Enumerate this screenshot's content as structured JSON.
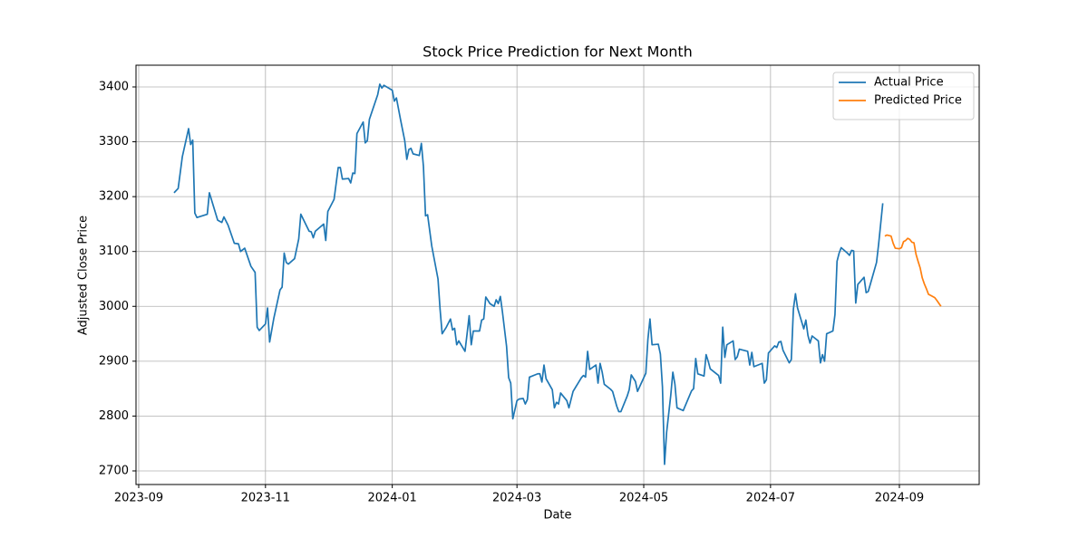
{
  "chart_data": {
    "type": "line",
    "title": "Stock Price Prediction for Next Month",
    "x_label": "Date",
    "y_label": "Adjusted Close Price",
    "xlim": [
      19599.7,
      20005.4
    ],
    "ylim": [
      2675.2,
      3439.6
    ],
    "xticks": [
      {
        "value": 19601,
        "label": "2023-09"
      },
      {
        "value": 19662,
        "label": "2023-11"
      },
      {
        "value": 19723,
        "label": "2024-01"
      },
      {
        "value": 19783,
        "label": "2024-03"
      },
      {
        "value": 19844,
        "label": "2024-05"
      },
      {
        "value": 19905,
        "label": "2024-07"
      },
      {
        "value": 19967,
        "label": "2024-09"
      }
    ],
    "yticks": [
      2700,
      2800,
      2900,
      3000,
      3100,
      3200,
      3300,
      3400
    ],
    "grid": true,
    "legend": "upper right",
    "series": [
      {
        "name": "Actual Price",
        "color": "#1f77b4",
        "x": [
          19618,
          19620,
          19622,
          19625,
          19626,
          19627,
          19628,
          19629,
          19634,
          19635,
          19639,
          19641,
          19642,
          19644,
          19647,
          19649,
          19650,
          19652,
          19655,
          19657,
          19658,
          19659,
          19662,
          19663,
          19664,
          19666,
          19669,
          19670,
          19671,
          19672,
          19673,
          19676,
          19678,
          19679,
          19683,
          19684,
          19685,
          19686,
          19690,
          19691,
          19692,
          19695,
          19697,
          19698,
          19699,
          19702,
          19703,
          19704,
          19705,
          19706,
          19709,
          19710,
          19711,
          19712,
          19716,
          19717,
          19718,
          19719,
          19723,
          19724,
          19725,
          19727,
          19729,
          19730,
          19731,
          19732,
          19733,
          19736,
          19737,
          19738,
          19739,
          19740,
          19742,
          19745,
          19746,
          19747,
          19749,
          19751,
          19752,
          19753,
          19754,
          19755,
          19758,
          19759,
          19760,
          19761,
          19762,
          19765,
          19766,
          19767,
          19768,
          19770,
          19772,
          19773,
          19774,
          19775,
          19776,
          19778,
          19779,
          19780,
          19781,
          19783,
          19784,
          19786,
          19787,
          19788,
          19789,
          19793,
          19794,
          19795,
          19796,
          19797,
          19800,
          19801,
          19802,
          19803,
          19804,
          19807,
          19808,
          19810,
          19814,
          19815,
          19816,
          19817,
          19818,
          19821,
          19822,
          19823,
          19824,
          19825,
          19828,
          19829,
          19831,
          19832,
          19833,
          19836,
          19837,
          19838,
          19840,
          19841,
          19845,
          19846,
          19847,
          19848,
          19851,
          19852,
          19853,
          19854,
          19855,
          19857,
          19858,
          19859,
          19860,
          19863,
          19867,
          19868,
          19869,
          19870,
          19873,
          19874,
          19875,
          19876,
          19880,
          19881,
          19882,
          19883,
          19884,
          19887,
          19888,
          19889,
          19890,
          19894,
          19895,
          19896,
          19897,
          19901,
          19902,
          19903,
          19904,
          19907,
          19908,
          19909,
          19910,
          19911,
          19914,
          19915,
          19916,
          19917,
          19918,
          19921,
          19922,
          19923,
          19924,
          19925,
          19928,
          19929,
          19930,
          19931,
          19932,
          19935,
          19936,
          19937,
          19938,
          19939,
          19942,
          19943,
          19944,
          19945,
          19946,
          19947,
          19950,
          19951,
          19952,
          19953,
          19956,
          19957,
          19959
        ],
        "values": [
          3207,
          3215,
          3273,
          3324,
          3295,
          3303,
          3170,
          3162,
          3168,
          3207,
          3157,
          3153,
          3163,
          3148,
          3115,
          3114,
          3100,
          3106,
          3073,
          3062,
          2962,
          2956,
          2968,
          2997,
          2935,
          2978,
          3030,
          3035,
          3097,
          3080,
          3077,
          3087,
          3123,
          3168,
          3137,
          3136,
          3125,
          3137,
          3150,
          3120,
          3173,
          3195,
          3253,
          3253,
          3232,
          3233,
          3225,
          3243,
          3242,
          3315,
          3336,
          3298,
          3302,
          3341,
          3386,
          3405,
          3398,
          3403,
          3394,
          3374,
          3380,
          3340,
          3302,
          3268,
          3286,
          3288,
          3278,
          3275,
          3297,
          3255,
          3165,
          3167,
          3110,
          3050,
          2995,
          2950,
          2962,
          2977,
          2957,
          2960,
          2930,
          2937,
          2918,
          2950,
          2983,
          2930,
          2955,
          2955,
          2975,
          2977,
          3017,
          3005,
          3000,
          3012,
          3005,
          3018,
          2990,
          2927,
          2870,
          2860,
          2795,
          2828,
          2831,
          2832,
          2822,
          2830,
          2871,
          2877,
          2877,
          2862,
          2893,
          2868,
          2848,
          2815,
          2825,
          2822,
          2842,
          2828,
          2815,
          2845,
          2870,
          2874,
          2871,
          2918,
          2885,
          2893,
          2860,
          2896,
          2880,
          2858,
          2849,
          2845,
          2818,
          2808,
          2808,
          2836,
          2848,
          2875,
          2863,
          2845,
          2878,
          2940,
          2977,
          2930,
          2931,
          2913,
          2853,
          2712,
          2770,
          2838,
          2880,
          2858,
          2815,
          2810,
          2846,
          2850,
          2905,
          2877,
          2873,
          2912,
          2900,
          2886,
          2874,
          2860,
          2962,
          2907,
          2930,
          2937,
          2903,
          2908,
          2922,
          2918,
          2893,
          2916,
          2890,
          2896,
          2860,
          2866,
          2915,
          2928,
          2925,
          2935,
          2936,
          2920,
          2897,
          2903,
          2995,
          3023,
          2997,
          2959,
          2975,
          2947,
          2933,
          2946,
          2937,
          2897,
          2912,
          2900,
          2950,
          2955,
          2985,
          3082,
          3097,
          3107,
          3097,
          3093,
          3102,
          3101,
          3006,
          3040,
          3053,
          3025,
          3027,
          3040,
          3080,
          3113,
          3188
        ]
      },
      {
        "name": "Predicted Price",
        "color": "#ff7f0e",
        "x": [
          19960,
          19961,
          19963,
          19964,
          19965,
          19967,
          19968,
          19969,
          19970,
          19971,
          19972,
          19973,
          19974,
          19975,
          19976,
          19977,
          19978,
          19979,
          19980,
          19981,
          19982,
          19984,
          19985,
          19987
        ],
        "values": [
          3128,
          3130,
          3128,
          3115,
          3106,
          3105,
          3107,
          3118,
          3120,
          3124,
          3122,
          3117,
          3116,
          3095,
          3082,
          3070,
          3052,
          3041,
          3032,
          3022,
          3020,
          3016,
          3011,
          3000
        ]
      }
    ]
  }
}
